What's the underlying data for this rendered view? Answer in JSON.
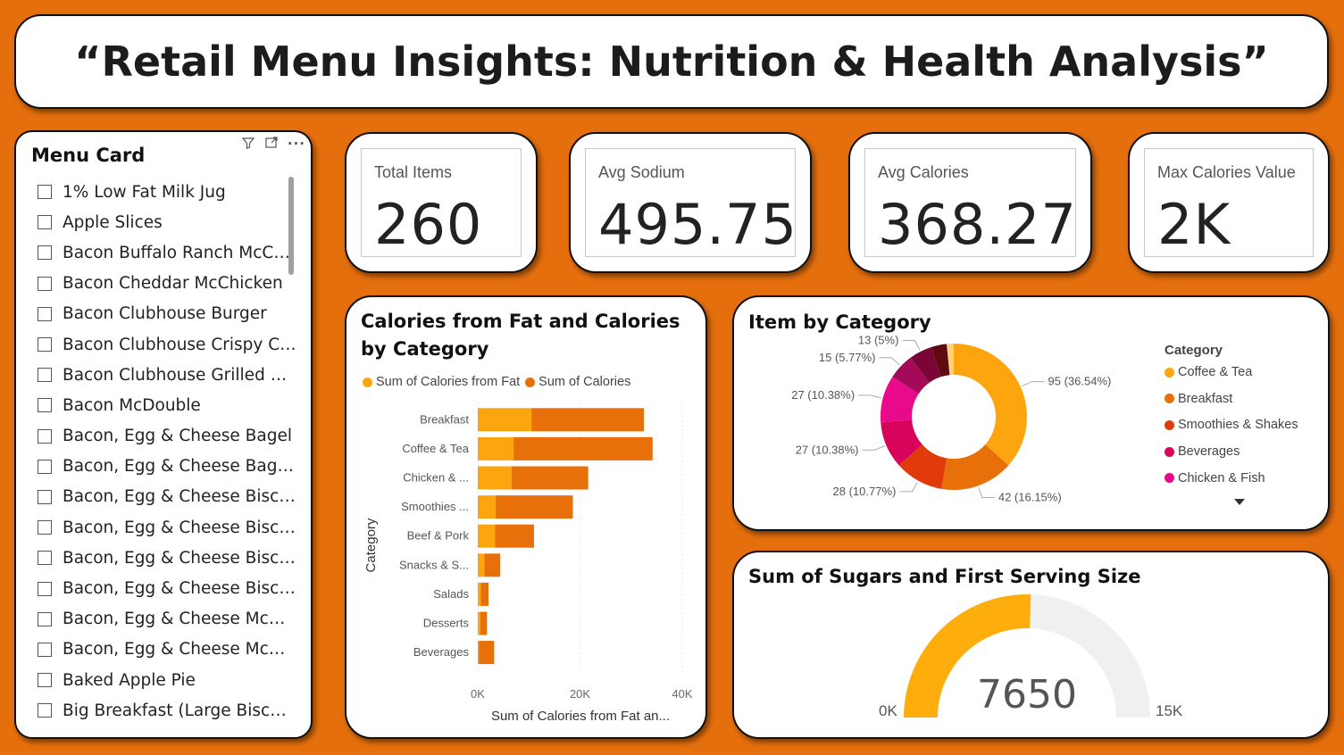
{
  "title": "“Retail Menu Insights: Nutrition & Health Analysis”",
  "slicer": {
    "title": "Menu Card",
    "items": [
      "1% Low Fat Milk Jug",
      "Apple Slices",
      "Bacon Buffalo Ranch McChi...",
      "Bacon Cheddar McChicken",
      "Bacon Clubhouse Burger",
      "Bacon Clubhouse Crispy Chic...",
      "Bacon Clubhouse Grilled Chi...",
      "Bacon McDouble",
      "Bacon, Egg & Cheese Bagel",
      "Bacon, Egg & Cheese Bagel ...",
      "Bacon, Egg & Cheese Biscuit...",
      "Bacon, Egg & Cheese Biscuit...",
      "Bacon, Egg & Cheese Biscuit...",
      "Bacon, Egg & Cheese Biscuit...",
      "Bacon, Egg & Cheese McGri...",
      "Bacon, Egg & Cheese McGri...",
      "Baked Apple Pie",
      "Big Breakfast (Large Biscuit)"
    ]
  },
  "kpis": [
    {
      "label": "Total Items",
      "value": "260"
    },
    {
      "label": "Avg Sodium",
      "value": "495.75"
    },
    {
      "label": "Avg Calories",
      "value": "368.27"
    },
    {
      "label": "Max Calories Value",
      "value": "2K"
    }
  ],
  "colors": {
    "background": "#E56F0D",
    "fat": "#FDA50F",
    "calories": "#E8700A",
    "gauge_fill": "#FDAE0C",
    "gauge_track": "#F0F0F0"
  },
  "bar_chart": {
    "title": "Calories from Fat and Calories by Category",
    "legend": [
      "Sum of Calories from Fat",
      "Sum of Calories"
    ],
    "ylabel": "Category",
    "xlabel": "Sum of Calories from Fat an...",
    "ticks": [
      "0K",
      "20K",
      "40K"
    ]
  },
  "donut_chart": {
    "title": "Item by Category",
    "legend_title": "Category",
    "legend": [
      "Coffee & Tea",
      "Breakfast",
      "Smoothies & Shakes",
      "Beverages",
      "Chicken & Fish"
    ]
  },
  "gauge": {
    "title": "Sum of Sugars and First Serving Size",
    "value_label": "7650",
    "min_label": "0K",
    "max_label": "15K"
  },
  "chart_data": [
    {
      "type": "bar",
      "orientation": "horizontal",
      "stacked": true,
      "title": "Calories from Fat and Calories by Category",
      "categories": [
        "Breakfast",
        "Coffee & Tea",
        "Chicken & ...",
        "Smoothies ...",
        "Beef & Pork",
        "Snacks & S...",
        "Salads",
        "Desserts",
        "Beverages"
      ],
      "series": [
        {
          "name": "Sum of Calories from Fat",
          "values": [
            10500,
            7000,
            6600,
            3500,
            3400,
            1300,
            600,
            500,
            200
          ]
        },
        {
          "name": "Sum of Calories",
          "values": [
            22000,
            27200,
            15000,
            15100,
            7600,
            3100,
            1500,
            1300,
            3000
          ]
        }
      ],
      "xlim": [
        0,
        40000
      ],
      "xlabel": "Sum of Calories from Fat an...",
      "ylabel": "Category",
      "legend_position": "top-left"
    },
    {
      "type": "pie",
      "donut": true,
      "title": "Item by Category",
      "slices": [
        {
          "label": "Coffee & Tea",
          "value": 95,
          "text": "95 (36.54%)",
          "color": "#FDA50F"
        },
        {
          "label": "Breakfast",
          "value": 42,
          "text": "42 (16.15%)",
          "color": "#E8700A"
        },
        {
          "label": "Smoothies & Shakes",
          "value": 28,
          "text": "28 (10.77%)",
          "color": "#E23B0B"
        },
        {
          "label": "Beverages",
          "value": 27,
          "text": "27 (10.38%)",
          "color": "#D8035A"
        },
        {
          "label": "Chicken & Fish",
          "value": 27,
          "text": "27 (10.38%)",
          "color": "#E90A8C"
        },
        {
          "label": "",
          "value": 15,
          "text": "15 (5.77%)",
          "color": "#A40A5A"
        },
        {
          "label": "",
          "value": 13,
          "text": "13 (5%)",
          "color": "#7B0536"
        },
        {
          "label": "",
          "value": 9,
          "text": "",
          "color": "#5E0A10"
        },
        {
          "label": "",
          "value": 4,
          "text": "",
          "color": "#FFD27A"
        }
      ],
      "legend_position": "right"
    },
    {
      "type": "gauge",
      "title": "Sum of Sugars and First Serving Size",
      "value": 7650,
      "min": 0,
      "max": 15000
    }
  ]
}
